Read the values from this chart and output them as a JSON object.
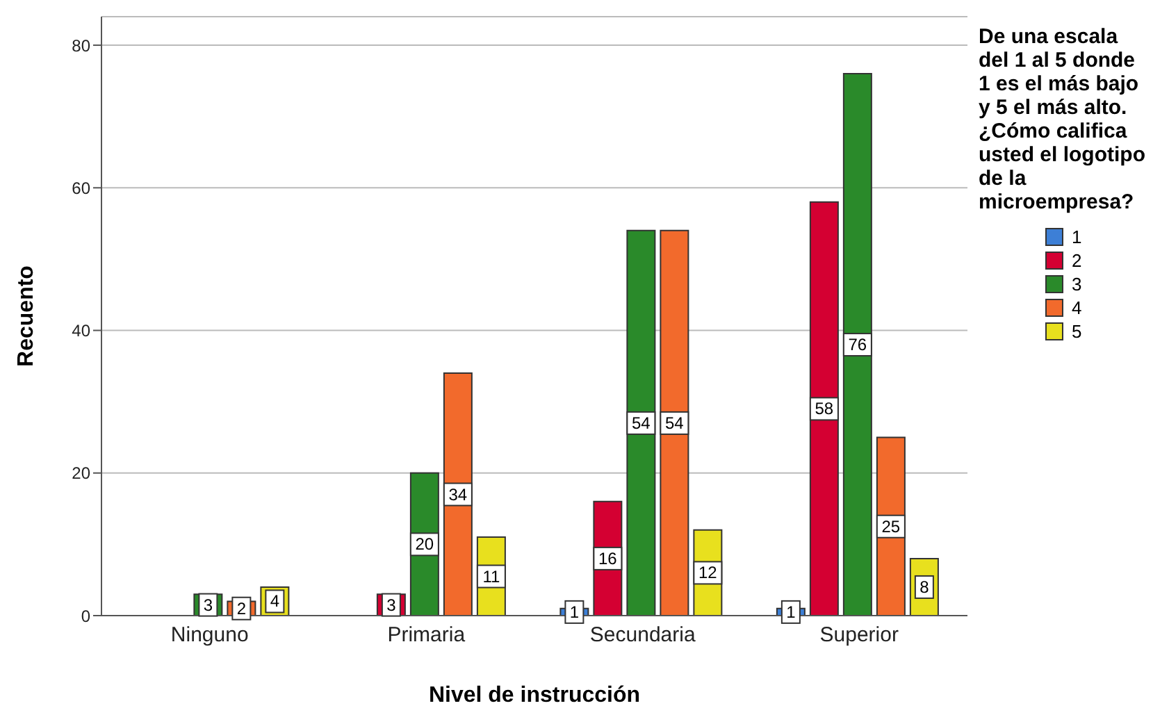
{
  "chart_data": {
    "type": "bar",
    "xlabel": "Nivel de instrucción",
    "ylabel": "Recuento",
    "legend_title": "De una escala del 1 al 5 donde 1 es el más bajo y 5 el más alto. ¿Cómo califica usted el logotipo de la microempresa?",
    "categories": [
      "Ninguno",
      "Primaria",
      "Secundaria",
      "Superior"
    ],
    "series": [
      {
        "name": "1",
        "color": "#3d7fd6",
        "values": [
          null,
          null,
          1,
          1
        ]
      },
      {
        "name": "2",
        "color": "#d40032",
        "values": [
          null,
          3,
          16,
          58
        ]
      },
      {
        "name": "3",
        "color": "#2a8a2a",
        "values": [
          3,
          20,
          54,
          76
        ]
      },
      {
        "name": "4",
        "color": "#f26a2c",
        "values": [
          2,
          34,
          54,
          25
        ]
      },
      {
        "name": "5",
        "color": "#e8e01e",
        "values": [
          4,
          11,
          12,
          8
        ]
      }
    ],
    "ylim": [
      0,
      84
    ],
    "yticks": [
      0,
      20,
      40,
      60,
      80
    ],
    "grid": "y",
    "legend": "right",
    "data_labels": true
  }
}
